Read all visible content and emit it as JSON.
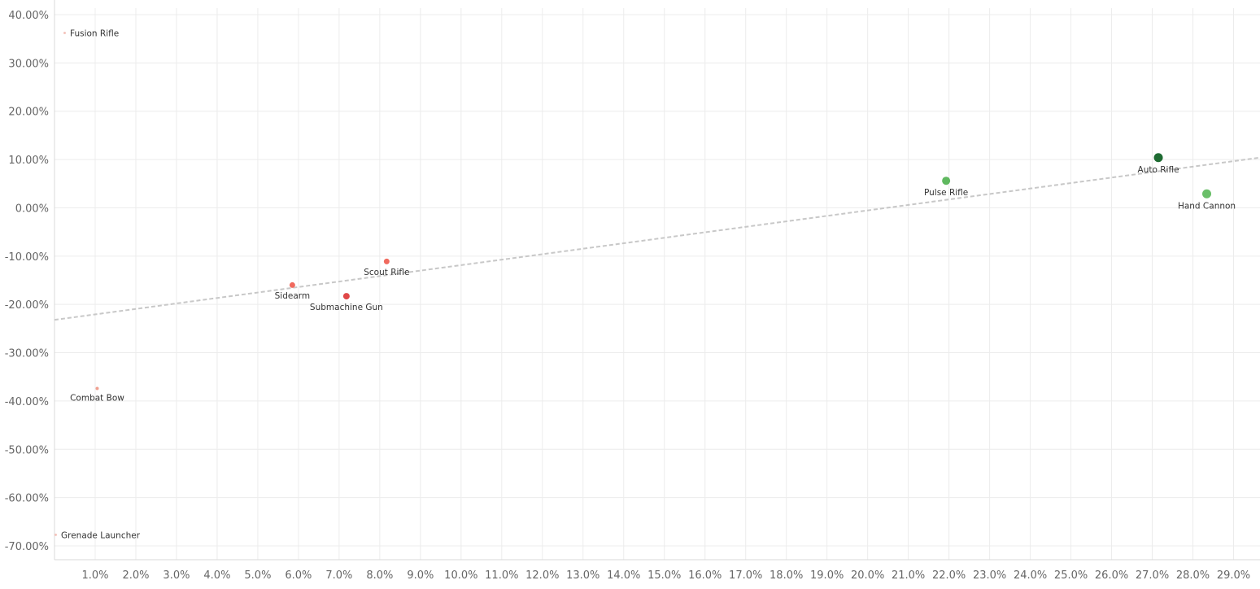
{
  "chart_data": {
    "type": "scatter",
    "title": "",
    "xlabel": "",
    "ylabel": "",
    "xlim": [
      0.0,
      0.2965
    ],
    "ylim": [
      -0.72,
      0.4
    ],
    "x_ticks": [
      0.01,
      0.02,
      0.03,
      0.04,
      0.05,
      0.06,
      0.07,
      0.08,
      0.09,
      0.1,
      0.11,
      0.12,
      0.13,
      0.14,
      0.15,
      0.16,
      0.17,
      0.18,
      0.19,
      0.2,
      0.21,
      0.22,
      0.23,
      0.24,
      0.25,
      0.26,
      0.27,
      0.28,
      0.29
    ],
    "x_tick_labels": [
      "1.0%",
      "2.0%",
      "3.0%",
      "4.0%",
      "5.0%",
      "6.0%",
      "7.0%",
      "8.0%",
      "9.0%",
      "10.0%",
      "11.0%",
      "12.0%",
      "13.0%",
      "14.0%",
      "15.0%",
      "16.0%",
      "17.0%",
      "18.0%",
      "19.0%",
      "20.0%",
      "21.0%",
      "22.0%",
      "23.0%",
      "24.0%",
      "25.0%",
      "26.0%",
      "27.0%",
      "28.0%",
      "29.0%"
    ],
    "y_ticks": [
      0.4,
      0.3,
      0.2,
      0.1,
      0.0,
      -0.1,
      -0.2,
      -0.3,
      -0.4,
      -0.5,
      -0.6,
      -0.7
    ],
    "y_tick_labels": [
      "40.00%",
      "30.00%",
      "20.00%",
      "10.00%",
      "0.00%",
      "-10.00%",
      "-20.00%",
      "-30.00%",
      "-40.00%",
      "-50.00%",
      "-60.00%",
      "-70.00%"
    ],
    "grid": true,
    "points": [
      {
        "label": "Fusion Rifle",
        "x": 0.0025,
        "y": 0.362,
        "color": "#f4c4bc",
        "size": 1.5,
        "label_pos": "right"
      },
      {
        "label": "Combat Bow",
        "x": 0.0105,
        "y": -0.374,
        "color": "#f0a090",
        "size": 2,
        "label_pos": "below"
      },
      {
        "label": "Grenade Launcher",
        "x": 0.0003,
        "y": -0.677,
        "color": "#f4c4bc",
        "size": 1.5,
        "label_pos": "right"
      },
      {
        "label": "Sidearm",
        "x": 0.0585,
        "y": -0.16,
        "color": "#f06a5e",
        "size": 3.5,
        "label_pos": "below"
      },
      {
        "label": "Scout Rifle",
        "x": 0.0817,
        "y": -0.111,
        "color": "#f06a5e",
        "size": 3.5,
        "label_pos": "below"
      },
      {
        "label": "Submachine Gun",
        "x": 0.0718,
        "y": -0.183,
        "color": "#e04848",
        "size": 4,
        "label_pos": "below"
      },
      {
        "label": "Pulse Rifle",
        "x": 0.2193,
        "y": 0.056,
        "color": "#5fb85f",
        "size": 5,
        "label_pos": "below"
      },
      {
        "label": "Auto Rifle",
        "x": 0.2715,
        "y": 0.104,
        "color": "#1e6b32",
        "size": 5.5,
        "label_pos": "below"
      },
      {
        "label": "Hand Cannon",
        "x": 0.2834,
        "y": 0.029,
        "color": "#6abf69",
        "size": 5.5,
        "label_pos": "below"
      }
    ],
    "trend_line": {
      "x": [
        0.0,
        0.2965
      ],
      "y": [
        -0.232,
        0.104
      ],
      "color": "#c8c8c8",
      "style": "dashed"
    },
    "colors": {
      "grid": "#ececec",
      "axis": "#d8d8d8",
      "tick_text": "#666666",
      "label_text": "#333333"
    }
  }
}
